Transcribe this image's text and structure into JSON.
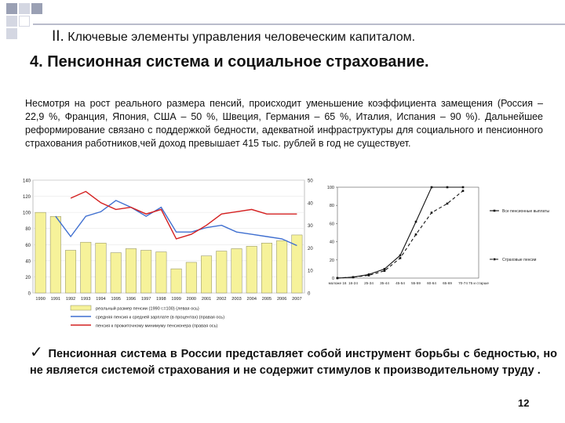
{
  "header": {
    "roman": "II.",
    "subtitle": "Ключевые элементы управления человеческим капиталом.",
    "title": "4. Пенсионная система и социальное страхование."
  },
  "paragraph": "Несмотря на рост реального размера пенсий, происходит уменьшение коэффициента замещения (Россия – 22,9 %, Франция, Япония, США – 50 %, Швеция, Германия – 65 %, Италия, Испания – 90 %). Дальнейшее реформирование  связано с поддержкой бедности, адекватной инфраструктуры для социального и пенсионного страхования работников,чей доход превышает 415 тыс. рублей в год не существует.",
  "bullet": {
    "mark": "✓",
    "text": "Пенсионная система в России представляет собой инструмент борьбы с бедностью, но не является системой страхования и не содержит стимулов к производительному труду ."
  },
  "page_number": "12",
  "colors": {
    "bar_fill": "#f6f29a",
    "bar_stroke": "#8a8a60",
    "blue_line": "#3f6fd0",
    "red_line": "#d42020"
  },
  "chart_data": [
    {
      "type": "bar",
      "title": "",
      "categories": [
        "1990",
        "1991",
        "1992",
        "1993",
        "1994",
        "1995",
        "1996",
        "1997",
        "1998",
        "1999",
        "2000",
        "2001",
        "2002",
        "2003",
        "2004",
        "2005",
        "2006",
        "2007"
      ],
      "ylim_left": [
        0,
        140
      ],
      "yticks_left": [
        "140",
        "120",
        "100",
        "80",
        "60",
        "40",
        "20",
        "0"
      ],
      "ylim_right": [
        0,
        50
      ],
      "yticks_right": [
        "50",
        "40",
        "30",
        "20",
        "10",
        "0"
      ],
      "series": [
        {
          "name": "реальный размер пенсии (1990 г.=100) (левая ось)",
          "kind": "bar",
          "axis": "left",
          "values": [
            100,
            95,
            53,
            63,
            62,
            50,
            55,
            53,
            51,
            30,
            38,
            46,
            52,
            55,
            58,
            62,
            65,
            72
          ]
        },
        {
          "name": "средняя пенсия к средней зарплате (в процентах) (правая ось)",
          "kind": "line",
          "axis": "right",
          "values": [
            null,
            34,
            25,
            34,
            36,
            41,
            38,
            34,
            38,
            27,
            27,
            29,
            30,
            27,
            26,
            25,
            24,
            21
          ]
        },
        {
          "name": "пенсия к прожиточному минимуму пенсионера (правая ось)",
          "kind": "line",
          "axis": "right",
          "values": [
            null,
            null,
            42,
            45,
            40,
            37,
            38,
            35,
            37,
            24,
            26,
            30,
            35,
            36,
            37,
            35,
            35,
            35
          ]
        }
      ]
    },
    {
      "type": "line",
      "title": "",
      "categories": [
        "моложе 16",
        "16-24",
        "25-34",
        "35-44",
        "45-54",
        "55-59",
        "60-64",
        "65-69",
        "70-74",
        "75 и старше"
      ],
      "ylim": [
        0,
        100
      ],
      "yticks": [
        "100",
        "80",
        "60",
        "40",
        "20",
        "0"
      ],
      "series": [
        {
          "name": "Все пенсионные выплаты",
          "style": "solid",
          "values": [
            0,
            1,
            4,
            10,
            25,
            62,
            100,
            100,
            100,
            null
          ]
        },
        {
          "name": "Страховые пенсии",
          "style": "dashed",
          "values": [
            0,
            1,
            3,
            8,
            22,
            48,
            72,
            82,
            96,
            null
          ]
        }
      ]
    }
  ]
}
